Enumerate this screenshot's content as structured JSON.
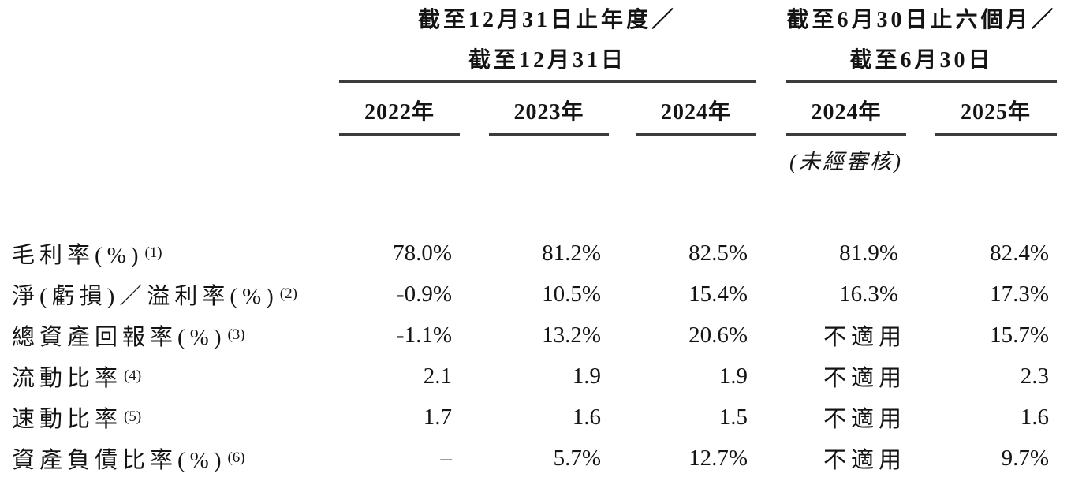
{
  "table": {
    "column_groups": [
      {
        "title_line1": "截至12月31日止年度／",
        "title_line2": "截至12月31日",
        "years": [
          "2022年",
          "2023年",
          "2024年"
        ]
      },
      {
        "title_line1": "截至6月30日止六個月／",
        "title_line2": "截至6月30日",
        "years": [
          "2024年",
          "2025年"
        ],
        "subnote": "(未經審核)"
      }
    ],
    "rows": [
      {
        "label": "毛利率(%)",
        "note": "(1)",
        "values": [
          "78.0%",
          "81.2%",
          "82.5%",
          "81.9%",
          "82.4%"
        ]
      },
      {
        "label": "淨(虧損)／溢利率(%)",
        "note": "(2)",
        "values": [
          "-0.9%",
          "10.5%",
          "15.4%",
          "16.3%",
          "17.3%"
        ]
      },
      {
        "label": "總資產回報率(%)",
        "note": "(3)",
        "values": [
          "-1.1%",
          "13.2%",
          "20.6%",
          "不適用",
          "15.7%"
        ]
      },
      {
        "label": "流動比率",
        "note": "(4)",
        "values": [
          "2.1",
          "1.9",
          "1.9",
          "不適用",
          "2.3"
        ]
      },
      {
        "label": "速動比率",
        "note": "(5)",
        "values": [
          "1.7",
          "1.6",
          "1.5",
          "不適用",
          "1.6"
        ]
      },
      {
        "label": "資產負債比率(%)",
        "note": "(6)",
        "values": [
          "–",
          "5.7%",
          "12.7%",
          "不適用",
          "9.7%"
        ]
      }
    ]
  },
  "colors": {
    "background": "#ffffff",
    "text": "#141414",
    "rule": "#3c3c3c"
  }
}
